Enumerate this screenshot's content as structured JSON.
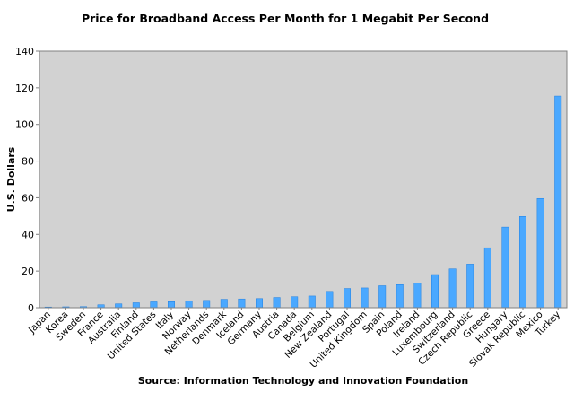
{
  "chart_data": {
    "type": "bar",
    "title": "Price for Broadband Access Per Month for 1 Megabit Per Second",
    "ylabel": "U.S. Dollars",
    "xlabel": "",
    "source": "Source: Information Technology and Innovation Foundation",
    "ylim": [
      0,
      140
    ],
    "yticks": [
      0,
      20,
      40,
      60,
      80,
      100,
      120,
      140
    ],
    "grid": false,
    "legend": "none",
    "categories": [
      "Japan",
      "Korea",
      "Sweden",
      "France",
      "Australia",
      "Finland",
      "United States",
      "Italy",
      "Norway",
      "Netherlands",
      "Denmark",
      "Iceland",
      "Germany",
      "Austria",
      "Canada",
      "Belgium",
      "New Zealand",
      "Portugal",
      "United Kingdom",
      "Spain",
      "Poland",
      "Ireland",
      "Luxembourg",
      "Switzerland",
      "Czech Republic",
      "Greece",
      "Hungary",
      "Slovak Republic",
      "Mexico",
      "Turkey"
    ],
    "values": [
      0.2,
      0.5,
      0.6,
      1.6,
      2.1,
      2.7,
      3.2,
      3.3,
      3.8,
      4.0,
      4.6,
      4.8,
      5.0,
      5.6,
      6.0,
      6.4,
      8.9,
      10.5,
      10.8,
      12.0,
      12.6,
      13.4,
      18.1,
      21.2,
      23.8,
      32.7,
      44.0,
      49.8,
      59.6,
      115.5
    ],
    "colors": {
      "bar": "#4aa8ff",
      "bar_shade": "#1f7fe0",
      "plot_background": "#d2d2d2",
      "axis": "#808080"
    }
  }
}
